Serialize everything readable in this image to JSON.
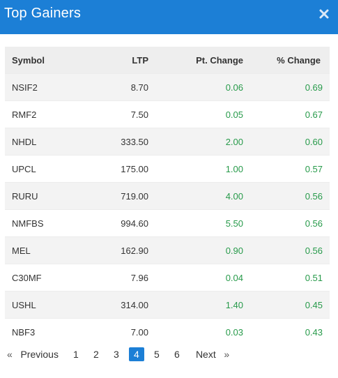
{
  "header": {
    "title": "Top Gainers",
    "close_icon": "close-icon",
    "background": "#1c7fd6"
  },
  "table": {
    "columns": [
      "Symbol",
      "LTP",
      "Pt. Change",
      "% Change"
    ],
    "rows": [
      {
        "symbol": "NSIF2",
        "ltp": "8.70",
        "pt_change": "0.06",
        "pct_change": "0.69"
      },
      {
        "symbol": "RMF2",
        "ltp": "7.50",
        "pt_change": "0.05",
        "pct_change": "0.67"
      },
      {
        "symbol": "NHDL",
        "ltp": "333.50",
        "pt_change": "2.00",
        "pct_change": "0.60"
      },
      {
        "symbol": "UPCL",
        "ltp": "175.00",
        "pt_change": "1.00",
        "pct_change": "0.57"
      },
      {
        "symbol": "RURU",
        "ltp": "719.00",
        "pt_change": "4.00",
        "pct_change": "0.56"
      },
      {
        "symbol": "NMFBS",
        "ltp": "994.60",
        "pt_change": "5.50",
        "pct_change": "0.56"
      },
      {
        "symbol": "MEL",
        "ltp": "162.90",
        "pt_change": "0.90",
        "pct_change": "0.56"
      },
      {
        "symbol": "C30MF",
        "ltp": "7.96",
        "pt_change": "0.04",
        "pct_change": "0.51"
      },
      {
        "symbol": "USHL",
        "ltp": "314.00",
        "pt_change": "1.40",
        "pct_change": "0.45"
      },
      {
        "symbol": "NBF3",
        "ltp": "7.00",
        "pt_change": "0.03",
        "pct_change": "0.43"
      }
    ],
    "positive_color": "#279a4a"
  },
  "pagination": {
    "prev_arrow": "«",
    "prev_label": "Previous",
    "pages": [
      "1",
      "2",
      "3",
      "4",
      "5",
      "6"
    ],
    "active_page": "4",
    "next_label": "Next",
    "next_arrow": "»",
    "active_color": "#1c7fd6"
  }
}
